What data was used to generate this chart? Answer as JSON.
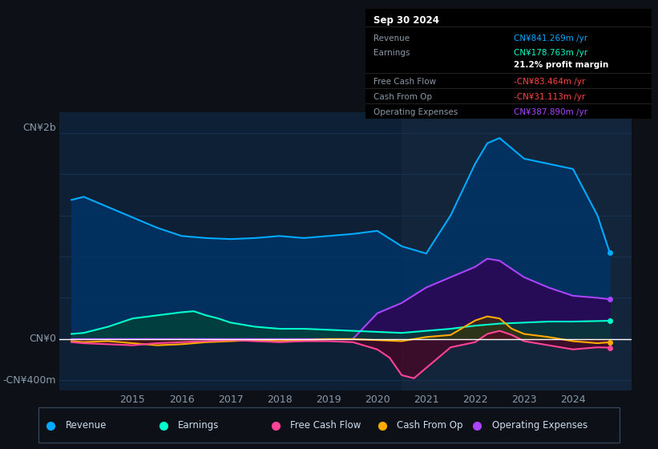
{
  "background_color": "#0d1117",
  "chart_bg": "#0d2035",
  "y_label_top": "CN¥2b",
  "y_label_zero": "CN¥0",
  "y_label_neg": "-CN¥400m",
  "ylim": [
    -500,
    2200
  ],
  "xlim": [
    2013.5,
    2025.2
  ],
  "x_ticks": [
    2015,
    2016,
    2017,
    2018,
    2019,
    2020,
    2021,
    2022,
    2023,
    2024
  ],
  "legend_items": [
    {
      "label": "Revenue",
      "color": "#00aaff"
    },
    {
      "label": "Earnings",
      "color": "#00ffcc"
    },
    {
      "label": "Free Cash Flow",
      "color": "#ff4499"
    },
    {
      "label": "Cash From Op",
      "color": "#ffaa00"
    },
    {
      "label": "Operating Expenses",
      "color": "#aa44ff"
    }
  ],
  "info_box": {
    "title": "Sep 30 2024",
    "rows": [
      {
        "label": "Revenue",
        "value": "CN¥841.269m /yr",
        "color": "#00aaff"
      },
      {
        "label": "Earnings",
        "value": "CN¥178.763m /yr",
        "color": "#00ffcc"
      },
      {
        "label": "",
        "value": "21.2% profit margin",
        "color": "#ffffff",
        "bold": true
      },
      {
        "label": "Free Cash Flow",
        "value": "-CN¥83.464m /yr",
        "color": "#ff4444"
      },
      {
        "label": "Cash From Op",
        "value": "-CN¥31.113m /yr",
        "color": "#ff4444"
      },
      {
        "label": "Operating Expenses",
        "value": "CN¥387.890m /yr",
        "color": "#aa44ff"
      }
    ]
  },
  "revenue": {
    "x": [
      2013.75,
      2014.0,
      2014.5,
      2015.0,
      2015.5,
      2016.0,
      2016.5,
      2017.0,
      2017.5,
      2018.0,
      2018.5,
      2019.0,
      2019.5,
      2020.0,
      2020.5,
      2021.0,
      2021.5,
      2022.0,
      2022.25,
      2022.5,
      2022.75,
      2023.0,
      2023.5,
      2024.0,
      2024.5,
      2024.75
    ],
    "y": [
      1350,
      1380,
      1280,
      1180,
      1080,
      1000,
      980,
      970,
      980,
      1000,
      980,
      1000,
      1020,
      1050,
      900,
      830,
      1200,
      1700,
      1900,
      1950,
      1850,
      1750,
      1700,
      1650,
      1200,
      841
    ],
    "color": "#00aaff",
    "fill_color": "#003366",
    "alpha": 0.85
  },
  "earnings": {
    "x": [
      2013.75,
      2014.0,
      2014.5,
      2015.0,
      2015.5,
      2016.0,
      2016.25,
      2016.5,
      2016.75,
      2017.0,
      2017.5,
      2018.0,
      2018.5,
      2019.0,
      2019.5,
      2020.0,
      2020.5,
      2021.0,
      2021.5,
      2022.0,
      2022.5,
      2023.0,
      2023.5,
      2024.0,
      2024.5,
      2024.75
    ],
    "y": [
      50,
      60,
      120,
      200,
      230,
      260,
      270,
      230,
      200,
      160,
      120,
      100,
      100,
      90,
      80,
      70,
      60,
      80,
      100,
      130,
      150,
      160,
      170,
      170,
      175,
      178
    ],
    "color": "#00ffcc",
    "fill_color": "#004433",
    "alpha": 0.7
  },
  "free_cash_flow": {
    "x": [
      2013.75,
      2014.0,
      2014.5,
      2015.0,
      2015.5,
      2016.0,
      2016.5,
      2017.0,
      2017.5,
      2018.0,
      2018.5,
      2019.0,
      2019.5,
      2020.0,
      2020.25,
      2020.5,
      2020.75,
      2021.0,
      2021.5,
      2022.0,
      2022.25,
      2022.5,
      2022.75,
      2023.0,
      2023.5,
      2024.0,
      2024.5,
      2024.75
    ],
    "y": [
      -30,
      -40,
      -50,
      -60,
      -40,
      -30,
      -20,
      -10,
      -20,
      -30,
      -20,
      -20,
      -30,
      -100,
      -180,
      -350,
      -380,
      -280,
      -80,
      -30,
      50,
      80,
      40,
      -20,
      -60,
      -100,
      -80,
      -83
    ],
    "color": "#ff4499",
    "fill_color": "#550022",
    "alpha": 0.6
  },
  "cash_from_op": {
    "x": [
      2013.75,
      2014.0,
      2014.5,
      2015.0,
      2015.5,
      2016.0,
      2016.5,
      2017.0,
      2017.5,
      2018.0,
      2018.5,
      2019.0,
      2019.5,
      2020.0,
      2020.5,
      2021.0,
      2021.5,
      2022.0,
      2022.25,
      2022.5,
      2022.75,
      2023.0,
      2023.5,
      2024.0,
      2024.5,
      2024.75
    ],
    "y": [
      -20,
      -30,
      -20,
      -40,
      -60,
      -50,
      -30,
      -20,
      -10,
      -20,
      -10,
      0,
      0,
      -10,
      -20,
      20,
      40,
      180,
      220,
      200,
      100,
      50,
      20,
      -20,
      -40,
      -31
    ],
    "color": "#ffaa00",
    "fill_color": "#443300",
    "alpha": 0.6
  },
  "operating_expenses": {
    "x": [
      2013.75,
      2014.0,
      2014.5,
      2015.0,
      2015.5,
      2016.0,
      2016.5,
      2017.0,
      2017.5,
      2018.0,
      2018.5,
      2019.0,
      2019.5,
      2020.0,
      2020.5,
      2021.0,
      2021.5,
      2022.0,
      2022.25,
      2022.5,
      2022.75,
      2023.0,
      2023.5,
      2024.0,
      2024.5,
      2024.75
    ],
    "y": [
      0,
      0,
      0,
      0,
      0,
      0,
      0,
      0,
      0,
      0,
      0,
      0,
      0,
      250,
      350,
      500,
      600,
      700,
      780,
      760,
      680,
      600,
      500,
      420,
      400,
      387
    ],
    "color": "#aa44ff",
    "fill_color": "#330055",
    "alpha": 0.75
  },
  "zero_line_color": "#ffffff",
  "grid_color": "#1a3a5c",
  "text_color": "#8899aa",
  "highlight_x": 2020.5
}
